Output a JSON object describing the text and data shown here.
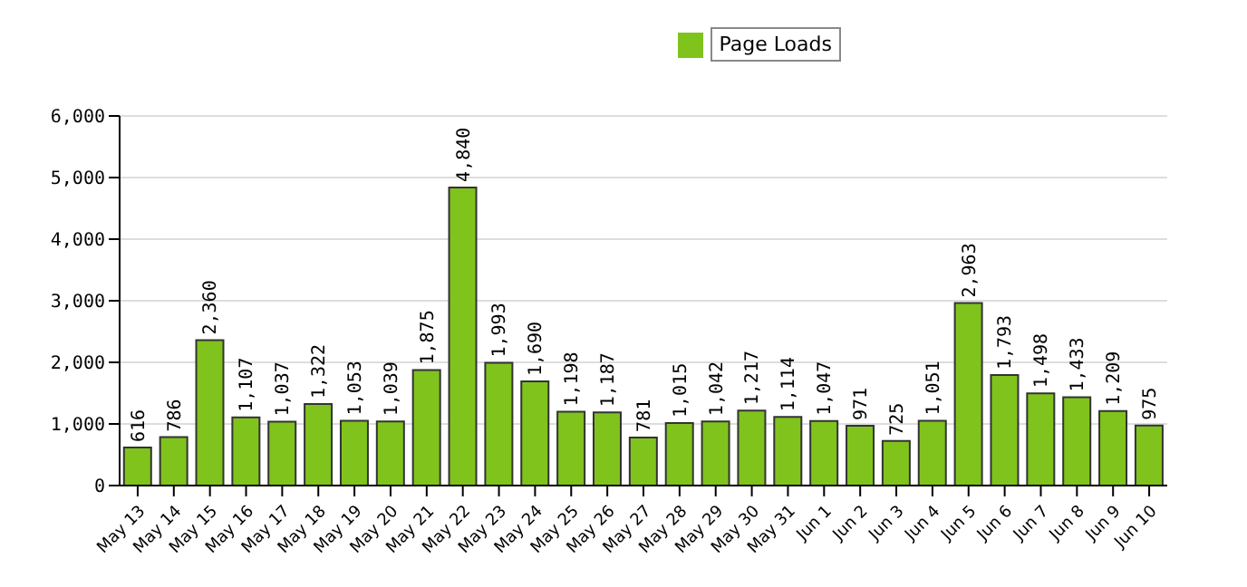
{
  "chart_data": {
    "type": "bar",
    "categories": [
      "May 13",
      "May 14",
      "May 15",
      "May 16",
      "May 17",
      "May 18",
      "May 19",
      "May 20",
      "May 21",
      "May 22",
      "May 23",
      "May 24",
      "May 25",
      "May 26",
      "May 27",
      "May 28",
      "May 29",
      "May 30",
      "May 31",
      "Jun 1",
      "Jun 2",
      "Jun 3",
      "Jun 4",
      "Jun 5",
      "Jun 6",
      "Jun 7",
      "Jun 8",
      "Jun 9",
      "Jun 10"
    ],
    "series": [
      {
        "name": "Page Loads",
        "color": "#80c31c",
        "values": [
          616,
          786,
          2360,
          1107,
          1037,
          1322,
          1053,
          1039,
          1875,
          4840,
          1993,
          1690,
          1198,
          1187,
          781,
          1015,
          1042,
          1217,
          1114,
          1047,
          971,
          725,
          1051,
          2963,
          1793,
          1498,
          1433,
          1209,
          975
        ],
        "value_labels": [
          "616",
          "786",
          "2,360",
          "1,107",
          "1,037",
          "1,322",
          "1,053",
          "1,039",
          "1,875",
          "4,840",
          "1,993",
          "1,690",
          "1,198",
          "1,187",
          "781",
          "1,015",
          "1,042",
          "1,217",
          "1,114",
          "1,047",
          "971",
          "725",
          "1,051",
          "2,963",
          "1,793",
          "1,498",
          "1,433",
          "1,209",
          "975"
        ]
      }
    ],
    "ylim": [
      0,
      6000
    ],
    "yticks": [
      {
        "value": 0,
        "label": "0"
      },
      {
        "value": 1000,
        "label": "1,000"
      },
      {
        "value": 2000,
        "label": "2,000"
      },
      {
        "value": 3000,
        "label": "3,000"
      },
      {
        "value": 4000,
        "label": "4,000"
      },
      {
        "value": 5000,
        "label": "5,000"
      },
      {
        "value": 6000,
        "label": "6,000"
      }
    ],
    "grid": "y",
    "legend": "top right"
  }
}
